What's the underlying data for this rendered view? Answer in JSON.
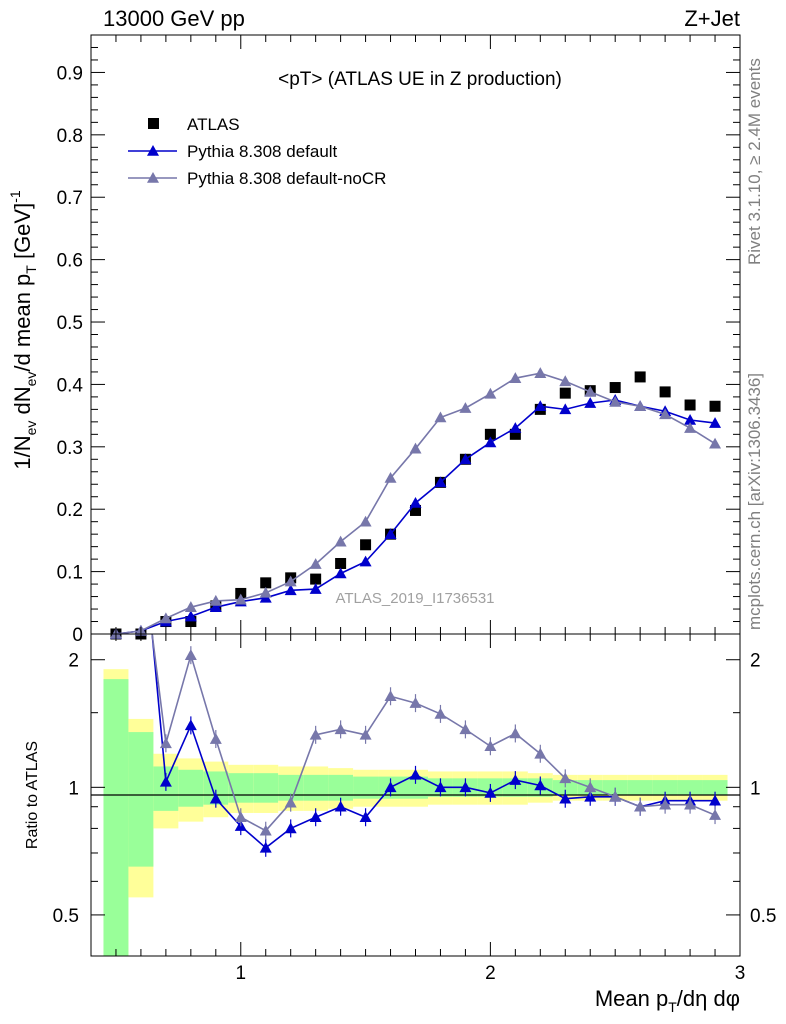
{
  "header": {
    "left": "13000 GeV pp",
    "right": "Z+Jet"
  },
  "side_text": {
    "rivet": "Rivet 3.1.10, ≥ 2.4M events",
    "mcplots": "mcplots.cern.ch [arXiv:1306.3436]"
  },
  "chart_data": [
    {
      "type": "scatter",
      "title": "<pT> (ATLAS UE in Z production)",
      "ylabel": "1/N_ev dN_ev/d mean p_T [GeV]^-1",
      "xlabel": "Mean p_T/dη dφ",
      "watermark": "ATLAS_2019_I1736531",
      "xlim": [
        0.4,
        3.0
      ],
      "ylim": [
        0,
        0.96
      ],
      "x_ticks": [
        "1",
        "2",
        "3"
      ],
      "y_ticks": [
        "0",
        "0.1",
        "0.2",
        "0.3",
        "0.4",
        "0.5",
        "0.6",
        "0.7",
        "0.8",
        "0.9"
      ],
      "legend_position": "top-left",
      "x": [
        0.5,
        0.6,
        0.7,
        0.8,
        0.9,
        1.0,
        1.1,
        1.2,
        1.3,
        1.4,
        1.5,
        1.6,
        1.7,
        1.8,
        1.9,
        2.0,
        2.1,
        2.2,
        2.3,
        2.4,
        2.5,
        2.6,
        2.7,
        2.8,
        2.9
      ],
      "series": [
        {
          "name": "ATLAS",
          "color": "#000000",
          "marker": "square",
          "values": [
            0.0,
            0.0,
            0.02,
            0.02,
            0.045,
            0.065,
            0.082,
            0.09,
            0.088,
            0.113,
            0.143,
            0.16,
            0.198,
            0.243,
            0.28,
            0.32,
            0.32,
            0.36,
            0.386,
            0.39,
            0.395,
            0.412,
            0.388,
            0.367,
            0.365
          ]
        },
        {
          "name": "Pythia 8.308 default",
          "color": "#0000cc",
          "marker": "triangle",
          "values": [
            0.0,
            0.005,
            0.02,
            0.028,
            0.043,
            0.052,
            0.058,
            0.07,
            0.072,
            0.097,
            0.116,
            0.16,
            0.21,
            0.243,
            0.28,
            0.307,
            0.33,
            0.365,
            0.36,
            0.37,
            0.375,
            0.365,
            0.357,
            0.343,
            0.338
          ]
        },
        {
          "name": "Pythia 8.308 default-noCR",
          "color": "#7777aa",
          "marker": "triangle",
          "values": [
            0.0,
            0.005,
            0.025,
            0.043,
            0.053,
            0.055,
            0.066,
            0.084,
            0.112,
            0.148,
            0.18,
            0.25,
            0.297,
            0.347,
            0.362,
            0.385,
            0.41,
            0.418,
            0.405,
            0.388,
            0.372,
            0.365,
            0.352,
            0.33,
            0.305
          ]
        }
      ]
    },
    {
      "type": "line",
      "ylabel": "Ratio to ATLAS",
      "xlim": [
        0.4,
        3.0
      ],
      "ylim": [
        0.4,
        2.3
      ],
      "y_scale": "log",
      "y_ticks": [
        "0.5",
        "1",
        "2"
      ],
      "band_inner_color": "#99ff99",
      "band_outer_color": "#ffff99",
      "x": [
        0.7,
        0.8,
        0.9,
        1.0,
        1.1,
        1.2,
        1.3,
        1.4,
        1.5,
        1.6,
        1.7,
        1.8,
        1.9,
        2.0,
        2.1,
        2.2,
        2.3,
        2.4,
        2.5,
        2.6,
        2.7,
        2.8,
        2.9
      ],
      "series": [
        {
          "name": "Pythia 8.308 default",
          "color": "#0000cc",
          "values": [
            1.03,
            1.4,
            0.94,
            0.81,
            0.72,
            0.8,
            0.85,
            0.9,
            0.85,
            1.0,
            1.07,
            1.0,
            1.0,
            0.97,
            1.04,
            1.01,
            0.94,
            0.95,
            0.95,
            0.9,
            0.93,
            0.93,
            0.93
          ]
        },
        {
          "name": "Pythia 8.308 default-noCR",
          "color": "#7777aa",
          "values": [
            1.27,
            2.05,
            1.3,
            0.85,
            0.79,
            0.92,
            1.33,
            1.37,
            1.33,
            1.64,
            1.58,
            1.49,
            1.37,
            1.25,
            1.34,
            1.2,
            1.05,
            1.0,
            0.95,
            0.9,
            0.91,
            0.91,
            0.86
          ]
        }
      ]
    }
  ]
}
